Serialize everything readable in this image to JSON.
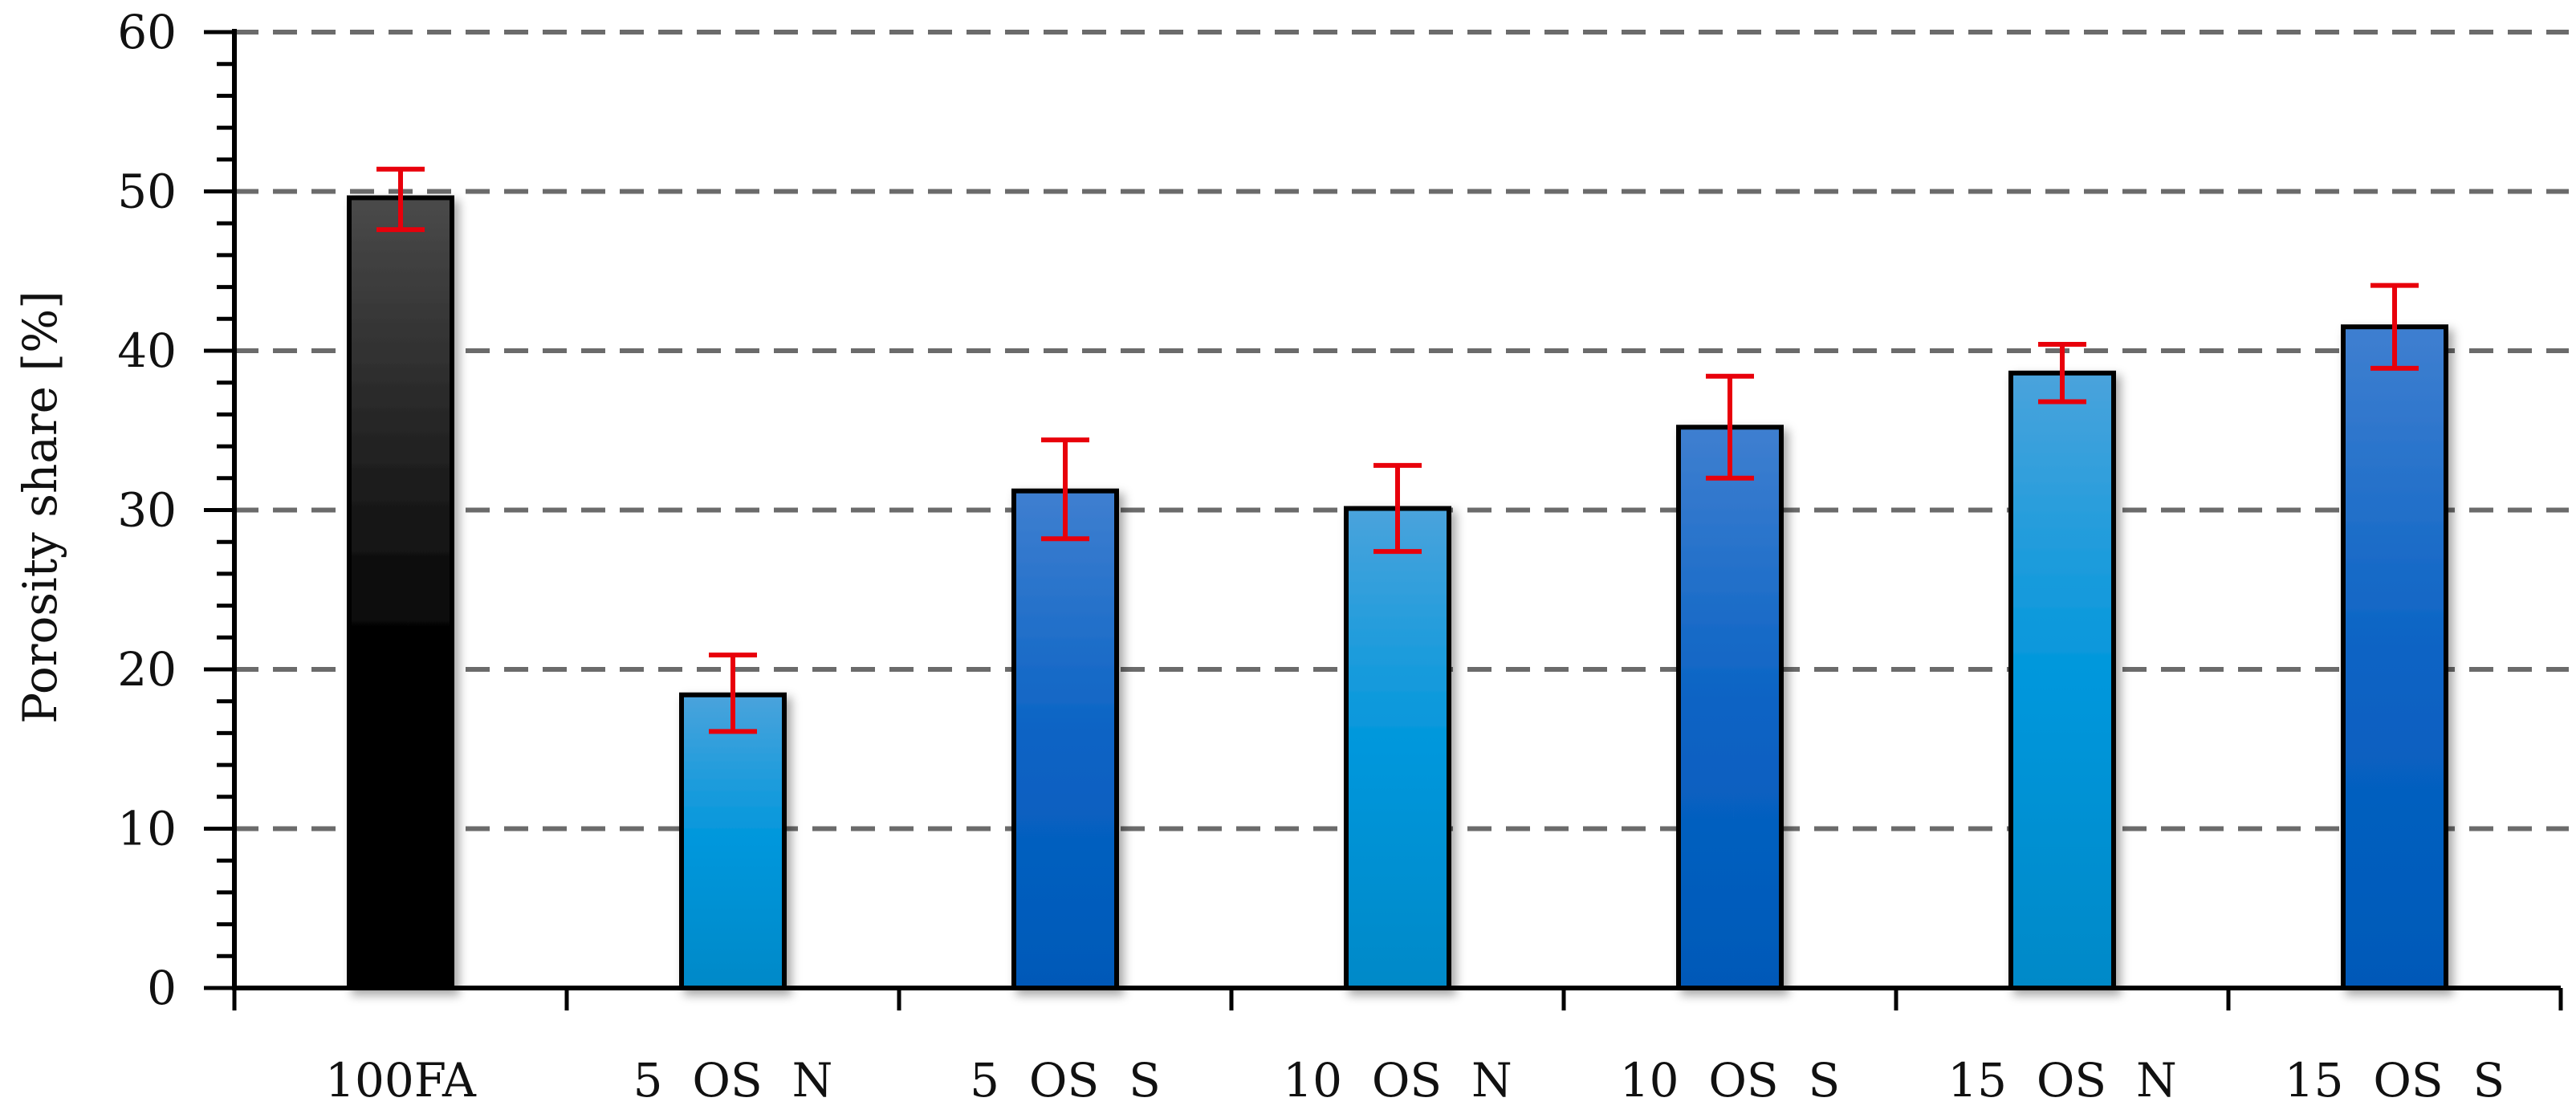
{
  "chart_data": {
    "type": "bar",
    "title": "",
    "xlabel": "",
    "ylabel": "Porosity share [%]",
    "ylim": [
      0,
      60
    ],
    "yticks": [
      0,
      10,
      20,
      30,
      40,
      50,
      60
    ],
    "grid": "dashed-horizontal",
    "legend": "none",
    "categories": [
      "100FA",
      "5  OS  N",
      "5  OS  S",
      "10  OS  N",
      "10  OS  S",
      "15  OS  N",
      "15  OS  S"
    ],
    "values": [
      49.6,
      18.4,
      31.2,
      30.1,
      35.2,
      38.6,
      41.5
    ],
    "error_low": [
      47.6,
      16.1,
      28.2,
      27.4,
      32.0,
      36.8,
      38.9
    ],
    "error_high": [
      51.4,
      20.9,
      34.4,
      32.8,
      38.4,
      40.4,
      44.1
    ],
    "bar_styles": [
      "black",
      "light",
      "dark",
      "light",
      "dark",
      "light",
      "dark"
    ],
    "colors": {
      "black_top": "#4a4a4a",
      "black_bottom": "#000000",
      "light_top": "#4aa3dc",
      "light_mid": "#0097dc",
      "light_bottom": "#0089c8",
      "dark_top": "#3f7fd0",
      "dark_mid": "#0a63c4",
      "dark_bottom": "#0059b8",
      "error": "#e8000b",
      "grid": "#6b6b6b",
      "axis": "#000000"
    }
  }
}
